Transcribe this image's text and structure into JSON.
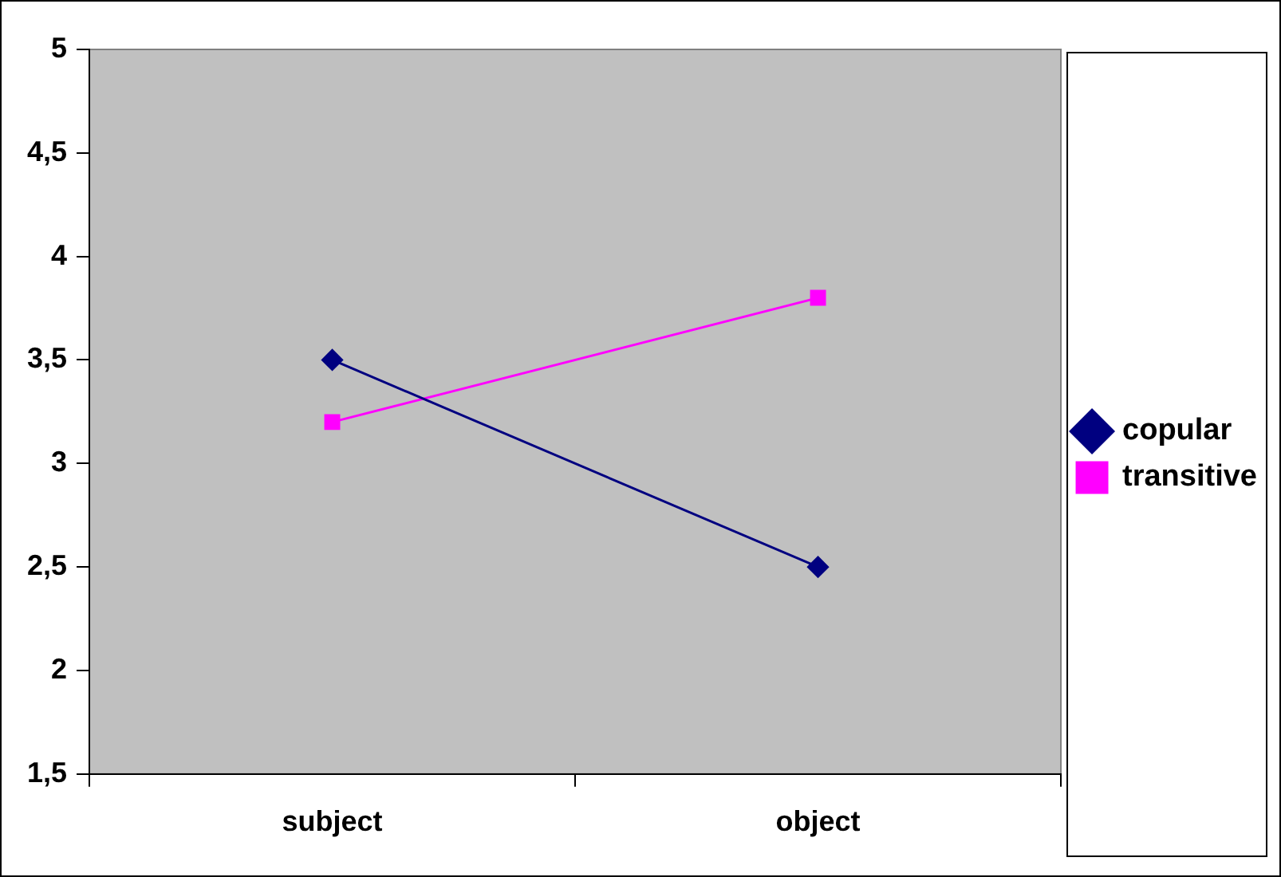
{
  "chart_data": {
    "type": "line",
    "categories": [
      "subject",
      "object"
    ],
    "series": [
      {
        "name": "copular",
        "color": "#000080",
        "marker": "diamond",
        "values": [
          3.5,
          2.5
        ]
      },
      {
        "name": "transitive",
        "color": "#ff00ff",
        "marker": "square",
        "values": [
          3.2,
          3.8
        ]
      }
    ],
    "ylim": [
      1.5,
      5
    ],
    "yticks": [
      {
        "value": 1.5,
        "label": "1,5"
      },
      {
        "value": 2,
        "label": "2"
      },
      {
        "value": 2.5,
        "label": "2,5"
      },
      {
        "value": 3,
        "label": "3"
      },
      {
        "value": 3.5,
        "label": "3,5"
      },
      {
        "value": 4,
        "label": "4"
      },
      {
        "value": 4.5,
        "label": "4,5"
      },
      {
        "value": 5,
        "label": "5"
      }
    ],
    "grid": false,
    "legend": "right",
    "line_style": "solid"
  }
}
